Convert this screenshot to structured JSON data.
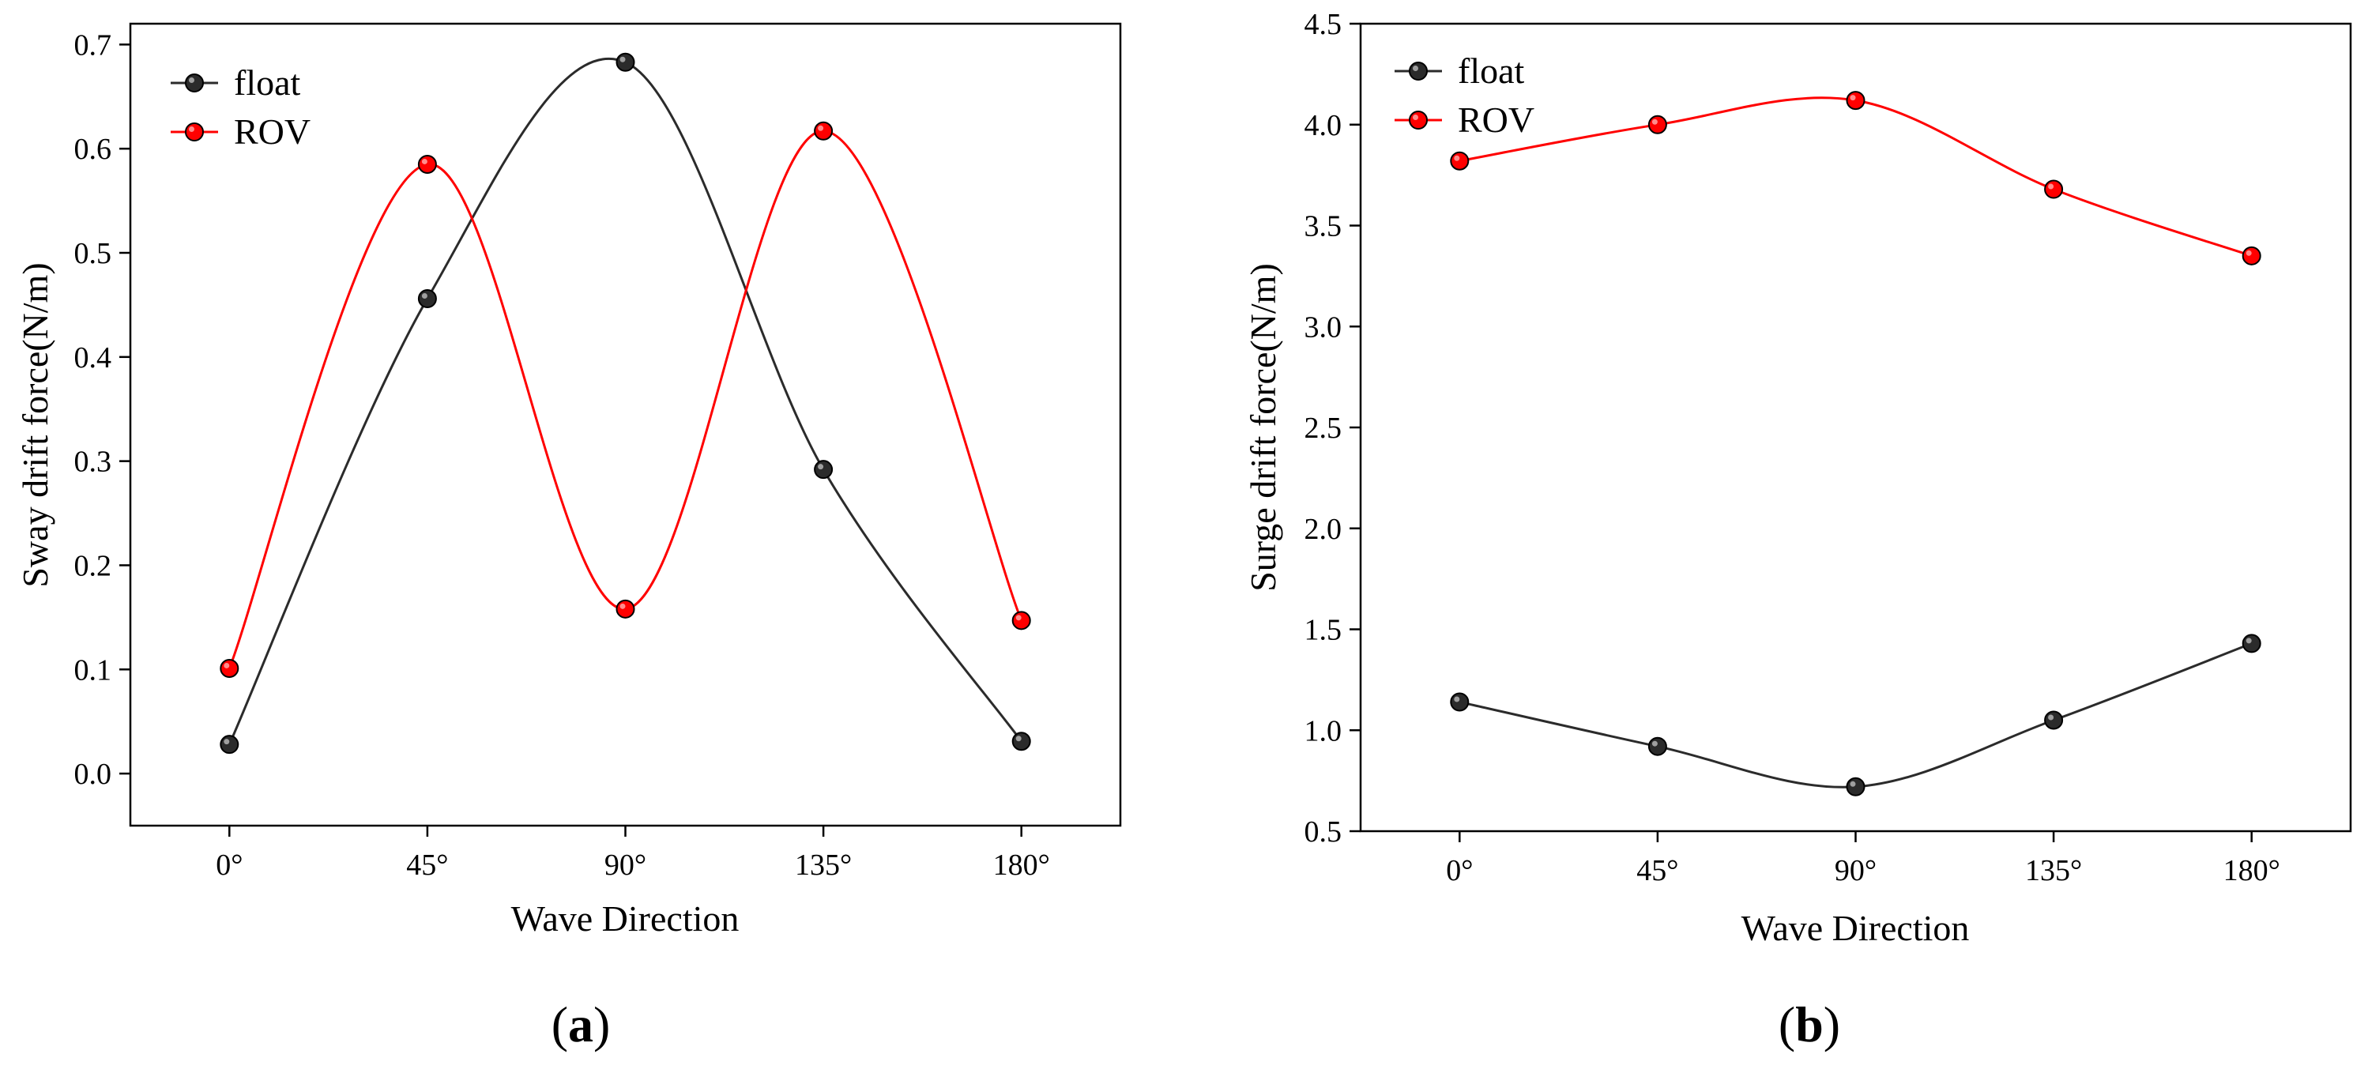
{
  "chart_data": [
    {
      "type": "line",
      "panel_label": "a",
      "title": "",
      "xlabel": "Wave Direction",
      "ylabel": "Sway drift force(N/m)",
      "categories": [
        "0°",
        "45°",
        "90°",
        "135°",
        "180°"
      ],
      "x": [
        0,
        45,
        90,
        135,
        180
      ],
      "xlim": [
        -22.5,
        202.5
      ],
      "ylim": [
        -0.05,
        0.72
      ],
      "yticks": [
        0.0,
        0.1,
        0.2,
        0.3,
        0.4,
        0.5,
        0.6,
        0.7
      ],
      "ytick_labels": [
        "0.0",
        "0.1",
        "0.2",
        "0.3",
        "0.4",
        "0.5",
        "0.6",
        "0.7"
      ],
      "legend_position": "top-left",
      "grid": false,
      "series": [
        {
          "name": "float",
          "color": "#2b2b2b",
          "values": [
            0.028,
            0.456,
            0.683,
            0.292,
            0.031
          ]
        },
        {
          "name": "ROV",
          "color": "#ff0000",
          "values": [
            0.101,
            0.585,
            0.158,
            0.617,
            0.147
          ]
        }
      ]
    },
    {
      "type": "line",
      "panel_label": "b",
      "title": "",
      "xlabel": "Wave Direction",
      "ylabel": "Surge drift force(N/m)",
      "categories": [
        "0°",
        "45°",
        "90°",
        "135°",
        "180°"
      ],
      "x": [
        0,
        45,
        90,
        135,
        180
      ],
      "xlim": [
        -22.5,
        202.5
      ],
      "ylim": [
        0.5,
        4.5
      ],
      "yticks": [
        0.5,
        1.0,
        1.5,
        2.0,
        2.5,
        3.0,
        3.5,
        4.0,
        4.5
      ],
      "ytick_labels": [
        "0.5",
        "1.0",
        "1.5",
        "2.0",
        "2.5",
        "3.0",
        "3.5",
        "4.0",
        "4.5"
      ],
      "legend_position": "top-left",
      "grid": false,
      "series": [
        {
          "name": "float",
          "color": "#2b2b2b",
          "values": [
            1.14,
            0.92,
            0.72,
            1.05,
            1.43
          ]
        },
        {
          "name": "ROV",
          "color": "#ff0000",
          "values": [
            3.82,
            4.0,
            4.12,
            3.68,
            3.35
          ]
        }
      ]
    }
  ]
}
